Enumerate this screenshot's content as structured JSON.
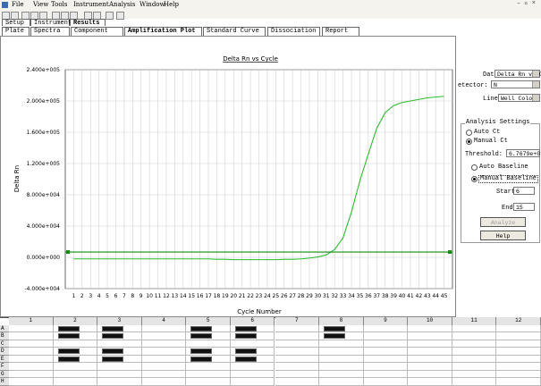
{
  "menu": [
    "File",
    "View",
    "Tools",
    "Instrument",
    "Analysis",
    "Window",
    "Help"
  ],
  "tabs_top": [
    "Setup",
    "Instrument",
    "Results"
  ],
  "tabs": [
    "Plate",
    "Spectra",
    "Component",
    "Amplification Plot",
    "Standard Curve",
    "Dissociation",
    "Report"
  ],
  "chart_data": {
    "type": "line",
    "title": "Delta Rn vs Cycle",
    "x_label": "Cycle Number",
    "y_label": "Delta Rn",
    "x": [
      1,
      2,
      3,
      4,
      5,
      6,
      7,
      8,
      9,
      10,
      11,
      12,
      13,
      14,
      15,
      16,
      17,
      18,
      19,
      20,
      21,
      22,
      23,
      24,
      25,
      26,
      27,
      28,
      29,
      30,
      31,
      32,
      33,
      34,
      35,
      36,
      37,
      38,
      39,
      40,
      41,
      42,
      43,
      44,
      45
    ],
    "values": [
      -2000,
      -2000,
      -2000,
      -2000,
      -2000,
      -2000,
      -2000,
      -2000,
      -2000,
      -2000,
      -2000,
      -2000,
      -2000,
      -2000,
      -2000,
      -2000,
      -2000,
      -2500,
      -2500,
      -3000,
      -3000,
      -3000,
      -3000,
      -3000,
      -3000,
      -2500,
      -2500,
      -2000,
      -1000,
      500,
      3000,
      10000,
      25000,
      58000,
      98000,
      132000,
      165000,
      185000,
      194000,
      198000,
      200000,
      202000,
      204000,
      205000,
      206000
    ],
    "color": "#2dbb2d",
    "threshold": 6767.9,
    "threshold_color": "#138a13",
    "xlim": [
      0,
      46
    ],
    "xticks": [
      1,
      2,
      3,
      4,
      5,
      6,
      7,
      8,
      9,
      10,
      11,
      12,
      13,
      14,
      15,
      16,
      17,
      18,
      19,
      20,
      21,
      22,
      23,
      24,
      25,
      26,
      27,
      28,
      29,
      30,
      31,
      32,
      33,
      34,
      35,
      36,
      37,
      38,
      39,
      40,
      41,
      42,
      43,
      44,
      45
    ],
    "ylim": [
      -40000,
      240000
    ],
    "yticks": [
      {
        "value": -40000,
        "label": "-4.000e+004"
      },
      {
        "value": 0,
        "label": "0.000e+000"
      },
      {
        "value": 40000,
        "label": "4.000e+004"
      },
      {
        "value": 80000,
        "label": "8.000e+004"
      },
      {
        "value": 120000,
        "label": "1.200e+005"
      },
      {
        "value": 160000,
        "label": "1.600e+005"
      },
      {
        "value": 200000,
        "label": "2.000e+005"
      },
      {
        "value": 240000,
        "label": "2.400e+005"
      }
    ],
    "grid": true
  },
  "panel": {
    "data_label": "Data:",
    "data_value": "Delta Rn vs Cycl",
    "detector_label": "etector:",
    "detector_value": "N",
    "line_label": "Line",
    "line_value": "Well Color",
    "group": "Analysis Settings",
    "auto_ct": "Auto Ct",
    "manual_ct": "Manual Ct",
    "threshold_label": "Threshold:",
    "threshold_value": "6.7679e+0",
    "auto_baseline": "Auto Baseline",
    "manual_baseline": "Manual Baseline",
    "start_label": "Start",
    "start_value": "6",
    "end_label": "End",
    "end_value": "15",
    "analyze": "Analyze",
    "help": "Help"
  },
  "plate": {
    "columns": [
      "1",
      "2",
      "3",
      "4",
      "5",
      "6",
      "7",
      "8",
      "9",
      "10",
      "11",
      "12"
    ],
    "rows": [
      "A",
      "B",
      "C",
      "D",
      "E",
      "F",
      "G",
      "H"
    ]
  }
}
